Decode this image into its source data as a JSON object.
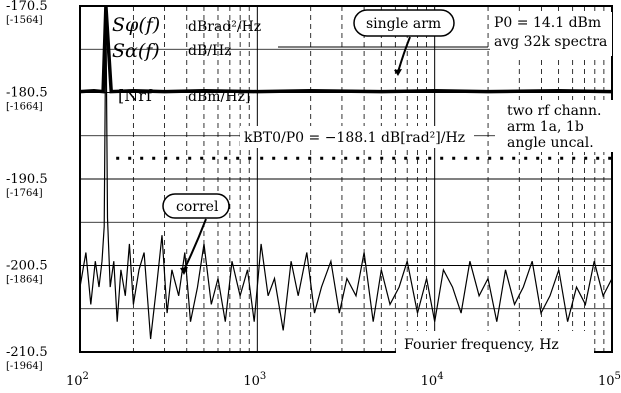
{
  "chart_data": {
    "type": "line",
    "x_scale": "log",
    "xlim": [
      100,
      100000
    ],
    "ylim": [
      -210.5,
      -170.5
    ],
    "grid": true,
    "xlabel": "Fourier frequency, Hz",
    "ylabel": "",
    "x_ticks": [
      {
        "base": "10",
        "exp": "2"
      },
      {
        "base": "10",
        "exp": "3"
      },
      {
        "base": "10",
        "exp": "4"
      },
      {
        "base": "10",
        "exp": "5"
      }
    ],
    "y_ticks": [
      {
        "main": "-170.5",
        "sub": "[-1564]"
      },
      {
        "main": "-180.5",
        "sub": "[-1664]"
      },
      {
        "main": "-190.5",
        "sub": "[-1764]"
      },
      {
        "main": "-200.5",
        "sub": "[-1864]"
      },
      {
        "main": "-210.5",
        "sub": "[-1964]"
      }
    ],
    "legend": {
      "s_phi": "Sφ(f)",
      "s_phi_unit": "dBrad²/Hz",
      "s_alpha": "Sα(f)",
      "s_alpha_unit": "dB/Hz",
      "n_rf": "[Nrf",
      "n_rf_unit": "dBm/Hz]"
    },
    "annotations": {
      "single_arm": "single arm",
      "correl": "correl",
      "p0": "P0 = 14.1 dBm",
      "avg": "avg 32k spectra",
      "two_rf": "two rf chann.",
      "arm": "arm 1a, 1b",
      "angle": "angle uncal.",
      "kbt0": "kBT0/P0 = −188.1 dB[rad²]/Hz"
    },
    "series": [
      {
        "name": "single arm",
        "x": [
          100,
          120,
          135,
          140,
          150,
          200,
          300,
          500,
          1000,
          2000,
          5000,
          10000,
          20000,
          50000,
          100000
        ],
        "y": [
          -180.4,
          -180.3,
          -180.4,
          -170.5,
          -180.4,
          -180.3,
          -180.4,
          -180.3,
          -180.4,
          -180.3,
          -180.4,
          -180.3,
          -180.4,
          -180.3,
          -180.4
        ]
      },
      {
        "name": "correl",
        "x": [
          100,
          108,
          115,
          122,
          128,
          133,
          137,
          140,
          143,
          148,
          155,
          162,
          170,
          180,
          190,
          200,
          215,
          230,
          250,
          270,
          290,
          310,
          330,
          360,
          390,
          420,
          460,
          500,
          550,
          600,
          660,
          720,
          800,
          880,
          960,
          1050,
          1150,
          1250,
          1400,
          1550,
          1700,
          1900,
          2100,
          2300,
          2600,
          2900,
          3200,
          3600,
          4000,
          4500,
          5000,
          5600,
          6300,
          7000,
          8000,
          9000,
          10000,
          11200,
          12600,
          14100,
          15800,
          17800,
          20000,
          22400,
          25100,
          28200,
          31600,
          35500,
          39800,
          44700,
          50100,
          56200,
          63100,
          70800,
          79400,
          89100,
          100000
        ],
        "y": [
          -203,
          -199,
          -205,
          -200,
          -203,
          -200,
          -196,
          -170.5,
          -195,
          -203,
          -200,
          -207,
          -201,
          -204,
          -198,
          -205,
          -201,
          -199,
          -209,
          -203,
          -197,
          -206,
          -201,
          -204,
          -199,
          -207,
          -203,
          -198,
          -205,
          -202,
          -207,
          -200,
          -204,
          -201,
          -207,
          -198,
          -204,
          -202,
          -208,
          -200,
          -204,
          -199,
          -206,
          -203,
          -200,
          -206,
          -202,
          -204,
          -199,
          -207,
          -201,
          -205,
          -203,
          -200,
          -206,
          -202,
          -207,
          -201,
          -203,
          -206,
          -200,
          -204,
          -202,
          -207,
          -201,
          -205,
          -203,
          -200,
          -206,
          -204,
          -201,
          -207,
          -203,
          -205,
          -200,
          -204,
          -202
        ]
      },
      {
        "name": "kBT0/P0",
        "x": [
          160,
          100000
        ],
        "y": [
          -188.1,
          -188.1
        ]
      }
    ]
  }
}
